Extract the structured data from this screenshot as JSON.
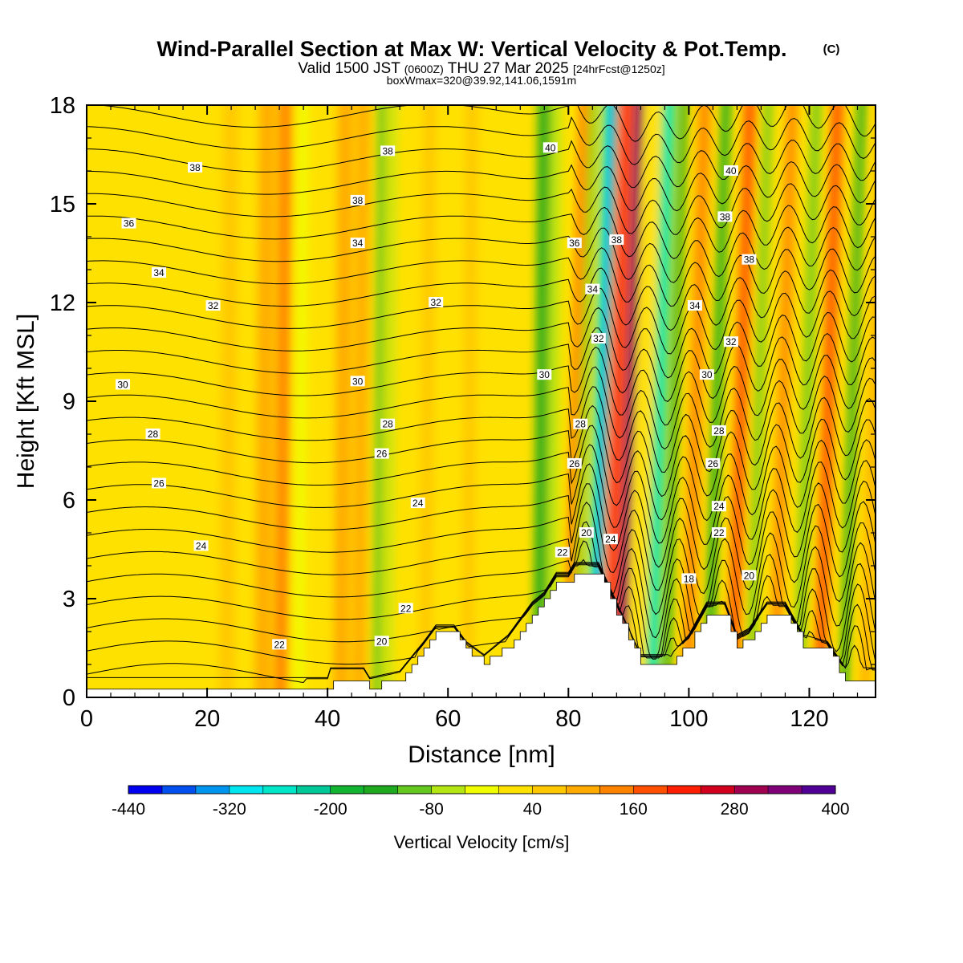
{
  "header": {
    "title_main": "Wind-Parallel Section at Max W: Vertical Velocity & Pot.Temp.",
    "title_mark": "(C)",
    "valid_a": "Valid 1500 JST ",
    "valid_b": "(0600Z)",
    "valid_c": " THU 27 Mar 2025 ",
    "valid_d": "[24hrFcst@1250z]",
    "box": "boxWmax=320@39.92,141.06,1591m"
  },
  "chart_data": {
    "type": "heatmap",
    "title": "Wind-Parallel Section at Max W: Vertical Velocity & Pot.Temp.",
    "xlabel": "Distance [nm]",
    "ylabel": "Height [Kft MSL]",
    "xlim": [
      0,
      131
    ],
    "ylim": [
      0,
      18
    ],
    "x_ticks": [
      0,
      20,
      40,
      60,
      80,
      100,
      120
    ],
    "y_ticks": [
      0,
      3,
      6,
      9,
      12,
      15,
      18
    ],
    "colorbar": {
      "label": "Vertical Velocity [cm/s]",
      "tick_values": [
        -440,
        -320,
        -200,
        -80,
        40,
        160,
        280,
        400
      ],
      "tick_labels": [
        "-440",
        "-320",
        "-200",
        "-80",
        "40",
        "160",
        "280",
        "400"
      ],
      "colors": [
        "#0000f0",
        "#0050f0",
        "#0096f0",
        "#00e6f0",
        "#00e6c8",
        "#00c896",
        "#12b432",
        "#1eaa1e",
        "#64c81e",
        "#b4e614",
        "#f0ff00",
        "#ffe100",
        "#ffc800",
        "#ffaa00",
        "#ff8200",
        "#ff5000",
        "#ff1e00",
        "#d2001e",
        "#a00050",
        "#800078",
        "#500096"
      ]
    },
    "velocity_bands": [
      {
        "x": 5,
        "w": 3,
        "w_val": 30
      },
      {
        "x": 24,
        "w": 2.5,
        "w_val": 60
      },
      {
        "x": 30,
        "w": 2.5,
        "w_val": 90
      },
      {
        "x": 33,
        "w": 2,
        "w_val": 120
      },
      {
        "x": 36,
        "w": 1.5,
        "w_val": -40
      },
      {
        "x": 40,
        "w": 2,
        "w_val": 10
      },
      {
        "x": 43,
        "w": 2.5,
        "w_val": 110
      },
      {
        "x": 46,
        "w": 2,
        "w_val": 100
      },
      {
        "x": 49,
        "w": 1.3,
        "w_val": -120
      },
      {
        "x": 51,
        "w": 1,
        "w_val": -60
      },
      {
        "x": 53,
        "w": 1.5,
        "w_val": 0
      },
      {
        "x": 57,
        "w": 2,
        "w_val": 50
      },
      {
        "x": 64,
        "w": 2,
        "w_val": 60
      },
      {
        "x": 70,
        "w": 2.5,
        "w_val": 30
      },
      {
        "x": 76,
        "w": 2,
        "w_val": -130
      },
      {
        "x": 78,
        "w": 1.5,
        "w_val": -60
      },
      {
        "x": 80.5,
        "w": 0.8,
        "w_val": 200
      },
      {
        "x": 82,
        "w": 1,
        "w_val": -90
      },
      {
        "x": 84.5,
        "w": 1.4,
        "w_val": -300
      },
      {
        "x": 85.5,
        "w": 0.8,
        "w_val": -400
      },
      {
        "x": 87.5,
        "w": 1.6,
        "w_val": 200
      },
      {
        "x": 89.5,
        "w": 1.4,
        "w_val": 330
      },
      {
        "x": 92,
        "w": 1.3,
        "w_val": 0
      },
      {
        "x": 94.5,
        "w": 1.8,
        "w_val": -260
      },
      {
        "x": 97,
        "w": 1.2,
        "w_val": -150
      },
      {
        "x": 100.5,
        "w": 1.8,
        "w_val": 150
      },
      {
        "x": 104,
        "w": 1.5,
        "w_val": -150
      },
      {
        "x": 108,
        "w": 1.8,
        "w_val": 160
      },
      {
        "x": 111,
        "w": 1.2,
        "w_val": -100
      },
      {
        "x": 115,
        "w": 1.6,
        "w_val": 130
      },
      {
        "x": 119,
        "w": 1.4,
        "w_val": -120
      },
      {
        "x": 122.5,
        "w": 1.8,
        "w_val": 190
      },
      {
        "x": 126.5,
        "w": 1.3,
        "w_val": -150
      },
      {
        "x": 130,
        "w": 1.5,
        "w_val": 90
      }
    ],
    "terrain": [
      [
        0,
        0.3
      ],
      [
        40,
        0.3
      ],
      [
        40,
        0.6
      ],
      [
        46,
        0.6
      ],
      [
        47,
        0.3
      ],
      [
        52,
        0.5
      ],
      [
        56,
        1.4
      ],
      [
        58,
        1.9
      ],
      [
        61,
        1.9
      ],
      [
        63,
        1.4
      ],
      [
        66,
        1.0
      ],
      [
        70,
        1.6
      ],
      [
        74,
        2.6
      ],
      [
        76,
        2.9
      ],
      [
        78,
        3.5
      ],
      [
        80,
        3.5
      ],
      [
        81,
        3.8
      ],
      [
        85,
        3.8
      ],
      [
        88,
        2.6
      ],
      [
        92,
        1.0
      ],
      [
        97,
        1.0
      ],
      [
        100,
        1.6
      ],
      [
        103,
        2.6
      ],
      [
        106,
        2.6
      ],
      [
        108,
        1.6
      ],
      [
        110,
        1.8
      ],
      [
        113,
        2.6
      ],
      [
        116,
        2.6
      ],
      [
        119,
        1.6
      ],
      [
        123,
        1.4
      ],
      [
        126,
        0.6
      ],
      [
        131,
        0.6
      ]
    ],
    "theta_levels": [
      18,
      19,
      20,
      21,
      22,
      23,
      24,
      25,
      26,
      27,
      28,
      29,
      30,
      31,
      32,
      33,
      34,
      35,
      36,
      37,
      38,
      39,
      40,
      41,
      42,
      43,
      44
    ],
    "theta_labels": [
      {
        "text": "38",
        "x": 18,
        "y": 16.1
      },
      {
        "text": "38",
        "x": 50,
        "y": 16.6
      },
      {
        "text": "40",
        "x": 77,
        "y": 16.7
      },
      {
        "text": "40",
        "x": 107,
        "y": 16.0
      },
      {
        "text": "36",
        "x": 7,
        "y": 14.4
      },
      {
        "text": "38",
        "x": 45,
        "y": 15.1
      },
      {
        "text": "38",
        "x": 106,
        "y": 14.6
      },
      {
        "text": "34",
        "x": 45,
        "y": 13.8
      },
      {
        "text": "36",
        "x": 81,
        "y": 13.8
      },
      {
        "text": "38",
        "x": 88,
        "y": 13.9
      },
      {
        "text": "38",
        "x": 110,
        "y": 13.3
      },
      {
        "text": "34",
        "x": 12,
        "y": 12.9
      },
      {
        "text": "34",
        "x": 84,
        "y": 12.4
      },
      {
        "text": "32",
        "x": 21,
        "y": 11.9
      },
      {
        "text": "32",
        "x": 58,
        "y": 12.0
      },
      {
        "text": "34",
        "x": 101,
        "y": 11.9
      },
      {
        "text": "32",
        "x": 85,
        "y": 10.9
      },
      {
        "text": "32",
        "x": 107,
        "y": 10.8
      },
      {
        "text": "30",
        "x": 6,
        "y": 9.5
      },
      {
        "text": "30",
        "x": 45,
        "y": 9.6
      },
      {
        "text": "30",
        "x": 76,
        "y": 9.8
      },
      {
        "text": "30",
        "x": 103,
        "y": 9.8
      },
      {
        "text": "28",
        "x": 11,
        "y": 8.0
      },
      {
        "text": "28",
        "x": 50,
        "y": 8.3
      },
      {
        "text": "28",
        "x": 82,
        "y": 8.3
      },
      {
        "text": "28",
        "x": 105,
        "y": 8.1
      },
      {
        "text": "26",
        "x": 49,
        "y": 7.4
      },
      {
        "text": "26",
        "x": 81,
        "y": 7.1
      },
      {
        "text": "26",
        "x": 104,
        "y": 7.1
      },
      {
        "text": "26",
        "x": 12,
        "y": 6.5
      },
      {
        "text": "24",
        "x": 55,
        "y": 5.9
      },
      {
        "text": "24",
        "x": 105,
        "y": 5.8
      },
      {
        "text": "20",
        "x": 83,
        "y": 5.0
      },
      {
        "text": "24",
        "x": 87,
        "y": 4.8
      },
      {
        "text": "22",
        "x": 105,
        "y": 5.0
      },
      {
        "text": "24",
        "x": 19,
        "y": 4.6
      },
      {
        "text": "22",
        "x": 79,
        "y": 4.4
      },
      {
        "text": "18",
        "x": 100,
        "y": 3.6
      },
      {
        "text": "20",
        "x": 110,
        "y": 3.7
      },
      {
        "text": "22",
        "x": 53,
        "y": 2.7
      },
      {
        "text": "20",
        "x": 49,
        "y": 1.7
      },
      {
        "text": "22",
        "x": 32,
        "y": 1.6
      }
    ]
  }
}
